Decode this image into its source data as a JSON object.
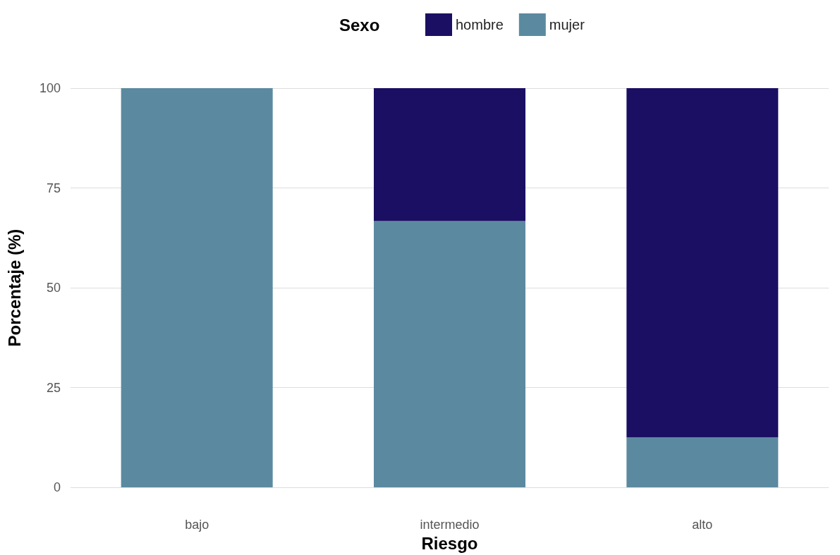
{
  "chart_data": {
    "type": "bar",
    "stacked": true,
    "xlabel": "Riesgo",
    "ylabel": "Porcentaje (%)",
    "legend_title": "Sexo",
    "legend": "top",
    "grid": "y",
    "categories": [
      "bajo",
      "intermedio",
      "alto"
    ],
    "series": [
      {
        "name": "mujer",
        "color": "#5b8aa0",
        "values": [
          100,
          66.7,
          12.5
        ]
      },
      {
        "name": "hombre",
        "color": "#1b0f63",
        "values": [
          0,
          33.3,
          87.5
        ]
      }
    ],
    "ylim": [
      0,
      100
    ],
    "yticks": [
      0,
      25,
      50,
      75,
      100
    ]
  }
}
